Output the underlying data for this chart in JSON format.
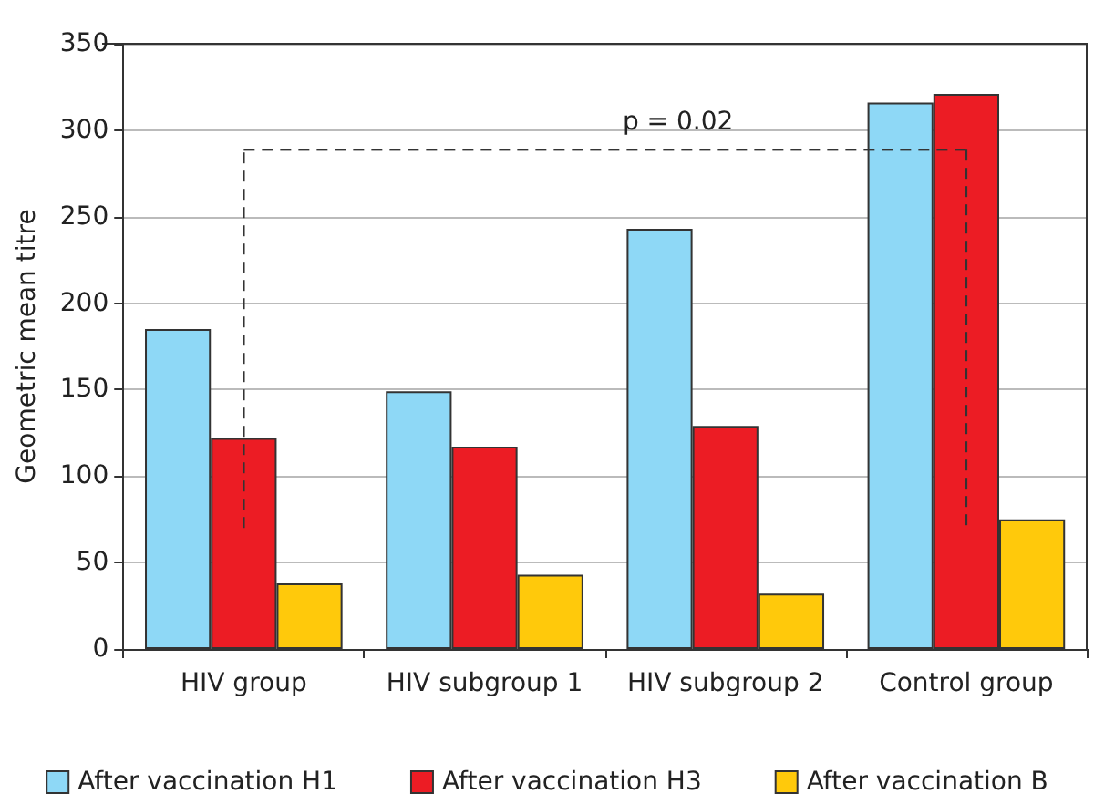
{
  "chart_data": {
    "type": "bar",
    "ylabel": "Geometric mean titre",
    "categories": [
      "HIV group",
      "HIV subgroup 1",
      "HIV subgroup 2",
      "Control group"
    ],
    "series": [
      {
        "name": "After vaccination H1",
        "color": "#8ed8f6",
        "values": [
          185,
          149,
          243,
          316
        ]
      },
      {
        "name": "After vaccination H3",
        "color": "#ec1c24",
        "values": [
          122,
          117,
          129,
          321
        ]
      },
      {
        "name": "After vaccination B",
        "color": "#ffc90b",
        "values": [
          38,
          43,
          32,
          75
        ]
      }
    ],
    "ylim": [
      0,
      350
    ],
    "yticks": [
      0,
      50,
      100,
      150,
      200,
      250,
      300,
      350
    ],
    "grid": "y",
    "legend": "bottom",
    "annotations": [
      "p = 0.02"
    ]
  }
}
